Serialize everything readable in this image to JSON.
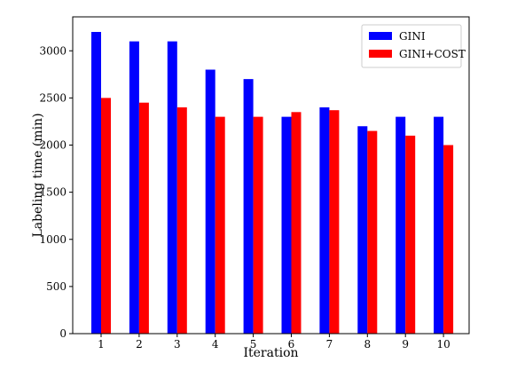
{
  "chart_data": {
    "type": "bar",
    "categories": [
      "1",
      "2",
      "3",
      "4",
      "5",
      "6",
      "7",
      "8",
      "9",
      "10"
    ],
    "series": [
      {
        "name": "GINI",
        "color": "#0000ff",
        "values": [
          3200,
          3100,
          3100,
          2800,
          2700,
          2300,
          2400,
          2200,
          2300,
          2300
        ]
      },
      {
        "name": "GINI+COST",
        "color": "#ff0000",
        "values": [
          2500,
          2450,
          2400,
          2300,
          2300,
          2350,
          2370,
          2150,
          2100,
          2000
        ]
      }
    ],
    "xlabel": "Iteration",
    "ylabel": "Labeling time (min)",
    "ylim": [
      0,
      3360
    ],
    "yticks": [
      0,
      500,
      1000,
      1500,
      2000,
      2500,
      3000
    ],
    "grid": false,
    "legend_position": "top-right"
  }
}
